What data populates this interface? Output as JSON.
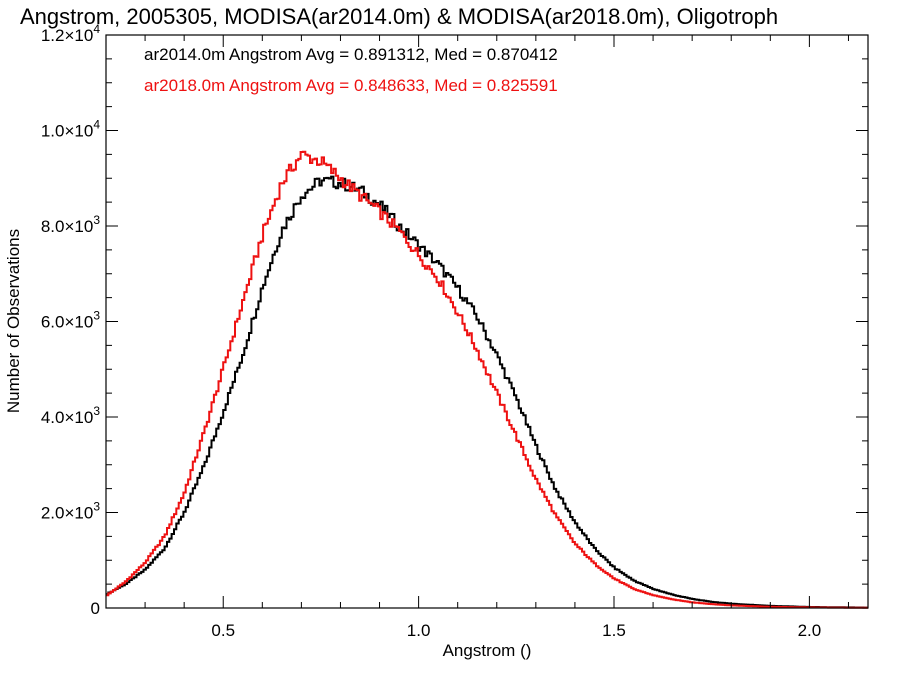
{
  "chart_data": {
    "type": "line",
    "title": "Angstrom, 2005305, MODISA(ar2014.0m) & MODISA(ar2018.0m), Oligotroph",
    "xlabel": "Angstrom ()",
    "ylabel": "Number of Observations",
    "xlim": [
      0.2,
      2.15
    ],
    "ylim": [
      0,
      12000
    ],
    "x_ticks": [
      {
        "value": 0.5,
        "label": "0.5"
      },
      {
        "value": 1.0,
        "label": "1.0"
      },
      {
        "value": 1.5,
        "label": "1.5"
      },
      {
        "value": 2.0,
        "label": "2.0"
      }
    ],
    "y_ticks": [
      {
        "value": 0,
        "mant": "0",
        "exp": ""
      },
      {
        "value": 2000,
        "mant": "2.0×10",
        "exp": "3"
      },
      {
        "value": 4000,
        "mant": "4.0×10",
        "exp": "3"
      },
      {
        "value": 6000,
        "mant": "6.0×10",
        "exp": "3"
      },
      {
        "value": 8000,
        "mant": "8.0×10",
        "exp": "3"
      },
      {
        "value": 10000,
        "mant": "1.0×10",
        "exp": "4"
      },
      {
        "value": 12000,
        "mant": "1.2×10",
        "exp": "4"
      }
    ],
    "legend_placement": "top-left",
    "series": [
      {
        "label": "ar2014.0m Angstrom Avg = 0.891312, Med = 0.870412",
        "color": "#000000",
        "points": [
          [
            0.2,
            280
          ],
          [
            0.25,
            500
          ],
          [
            0.3,
            800
          ],
          [
            0.35,
            1250
          ],
          [
            0.4,
            2000
          ],
          [
            0.45,
            2950
          ],
          [
            0.5,
            4100
          ],
          [
            0.55,
            5300
          ],
          [
            0.6,
            6700
          ],
          [
            0.65,
            7900
          ],
          [
            0.7,
            8650
          ],
          [
            0.75,
            8950
          ],
          [
            0.8,
            8900
          ],
          [
            0.85,
            8750
          ],
          [
            0.9,
            8450
          ],
          [
            0.95,
            8000
          ],
          [
            1.0,
            7600
          ],
          [
            1.05,
            7200
          ],
          [
            1.1,
            6700
          ],
          [
            1.15,
            6100
          ],
          [
            1.2,
            5300
          ],
          [
            1.25,
            4400
          ],
          [
            1.3,
            3400
          ],
          [
            1.35,
            2500
          ],
          [
            1.4,
            1800
          ],
          [
            1.45,
            1250
          ],
          [
            1.5,
            850
          ],
          [
            1.55,
            580
          ],
          [
            1.6,
            400
          ],
          [
            1.65,
            280
          ],
          [
            1.7,
            190
          ],
          [
            1.75,
            130
          ],
          [
            1.8,
            90
          ],
          [
            1.9,
            45
          ],
          [
            2.0,
            22
          ],
          [
            2.15,
            8
          ]
        ]
      },
      {
        "label": "ar2018.0m Angstrom Avg = 0.848633, Med = 0.825591",
        "color": "#ee1111",
        "points": [
          [
            0.2,
            250
          ],
          [
            0.25,
            550
          ],
          [
            0.3,
            950
          ],
          [
            0.35,
            1500
          ],
          [
            0.4,
            2400
          ],
          [
            0.45,
            3650
          ],
          [
            0.5,
            5000
          ],
          [
            0.55,
            6400
          ],
          [
            0.6,
            7800
          ],
          [
            0.65,
            8900
          ],
          [
            0.7,
            9500
          ],
          [
            0.75,
            9350
          ],
          [
            0.8,
            9000
          ],
          [
            0.85,
            8650
          ],
          [
            0.9,
            8300
          ],
          [
            0.95,
            7900
          ],
          [
            1.0,
            7400
          ],
          [
            1.05,
            6900
          ],
          [
            1.1,
            6200
          ],
          [
            1.15,
            5400
          ],
          [
            1.2,
            4500
          ],
          [
            1.25,
            3600
          ],
          [
            1.3,
            2700
          ],
          [
            1.35,
            1950
          ],
          [
            1.4,
            1350
          ],
          [
            1.45,
            930
          ],
          [
            1.5,
            620
          ],
          [
            1.55,
            400
          ],
          [
            1.6,
            270
          ],
          [
            1.65,
            180
          ],
          [
            1.7,
            120
          ],
          [
            1.75,
            80
          ],
          [
            1.8,
            55
          ],
          [
            1.9,
            25
          ],
          [
            2.0,
            12
          ],
          [
            2.15,
            4
          ]
        ]
      }
    ]
  }
}
